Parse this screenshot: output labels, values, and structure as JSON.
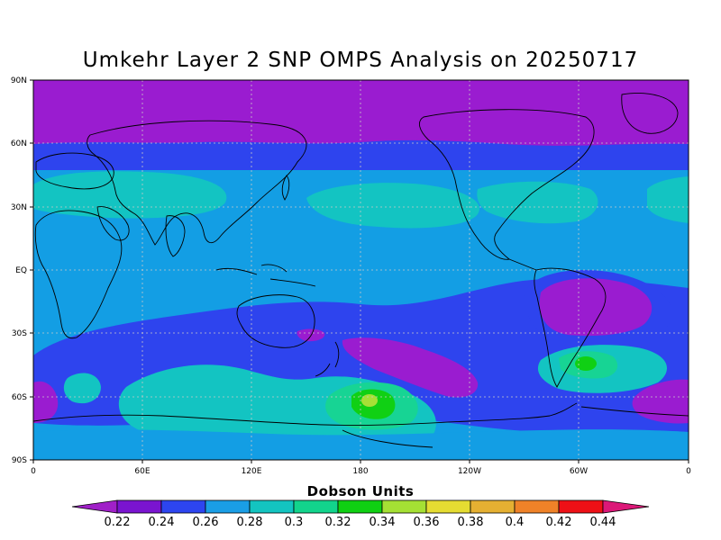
{
  "title": "Umkehr Layer 2 SNP OMPS Analysis on 20250717",
  "map": {
    "lat_labels": [
      "90N",
      "60N",
      "30N",
      "EQ",
      "30S",
      "60S",
      "90S"
    ],
    "lon_labels": [
      "0",
      "60E",
      "120E",
      "180",
      "120W",
      "60W",
      "0"
    ]
  },
  "colorbar": {
    "title": "Dobson Units",
    "levels": [
      "0.22",
      "0.24",
      "0.26",
      "0.28",
      "0.3",
      "0.32",
      "0.34",
      "0.36",
      "0.38",
      "0.4",
      "0.42",
      "0.44"
    ],
    "colors": [
      "#a020c8",
      "#7a14d0",
      "#2d45f0",
      "#1a9ee6",
      "#13c4c0",
      "#12d48c",
      "#0fd012",
      "#a5e034",
      "#e5dc32",
      "#e5b032",
      "#ef8228",
      "#ee1016",
      "#dc1878"
    ]
  },
  "palette": {
    "purple_high": "#9a1cd0",
    "violet": "#6f14cc",
    "blue": "#2e44ee",
    "azure": "#139ee4",
    "cyan": "#13c4c2",
    "sea_green": "#17d494",
    "green": "#10d014",
    "lime": "#a6e036",
    "coast": "#000000",
    "grid": "#c8c8c8"
  }
}
